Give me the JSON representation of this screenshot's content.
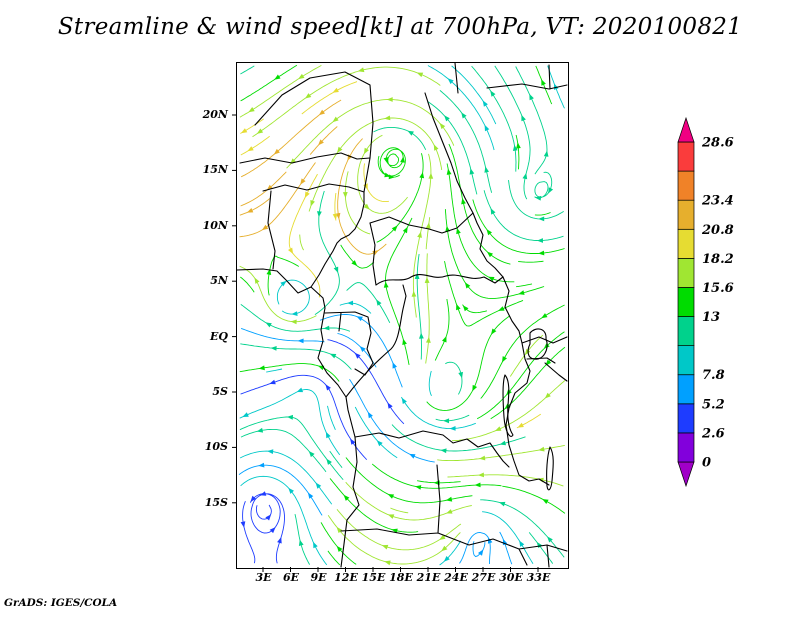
{
  "title": "Streamline & wind speed[kt] at 700hPa, VT: 2020100821",
  "attribution": "GrADS: IGES/COLA",
  "chart_data": {
    "type": "streamline",
    "field": "wind speed",
    "units": "kt",
    "level": "700hPa",
    "valid_time": "2020100821",
    "x_ticks": [
      "3E",
      "6E",
      "9E",
      "12E",
      "15E",
      "18E",
      "21E",
      "24E",
      "27E",
      "30E",
      "33E"
    ],
    "y_ticks": [
      "20N",
      "15N",
      "10N",
      "5N",
      "EQ",
      "5S",
      "10S",
      "15S"
    ],
    "colorbar": {
      "labels": [
        "28.6",
        "23.4",
        "20.8",
        "18.2",
        "15.6",
        "13",
        "7.8",
        "5.2",
        "2.6",
        "0"
      ],
      "label_values": [
        28.6,
        23.4,
        20.8,
        18.2,
        15.6,
        13,
        7.8,
        5.2,
        2.6,
        0
      ],
      "levels": [
        0,
        2.6,
        5.2,
        7.8,
        10.4,
        13,
        15.6,
        18.2,
        20.8,
        23.4,
        26,
        28.6
      ],
      "colors_bottom_to_top": [
        "#a000c8",
        "#8200dc",
        "#1e3cff",
        "#00a0ff",
        "#00c8c8",
        "#00d28c",
        "#00dc00",
        "#a0e632",
        "#e6dc32",
        "#e6af2d",
        "#f08228",
        "#fa3c3c",
        "#f00082"
      ]
    }
  }
}
